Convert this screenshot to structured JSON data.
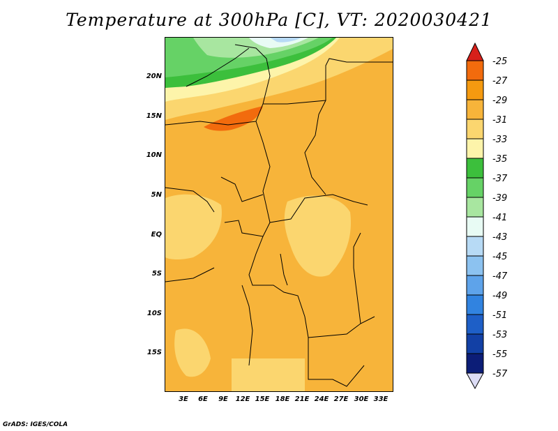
{
  "title": "Temperature at 300hPa [C], VT: 2020030421",
  "credit": "GrADS: IGES/COLA",
  "axes": {
    "lat_labels": [
      "20N",
      "15N",
      "10N",
      "5N",
      "EQ",
      "5S",
      "10S",
      "15S"
    ],
    "lon_labels": [
      "3E",
      "6E",
      "9E",
      "12E",
      "15E",
      "18E",
      "21E",
      "24E",
      "27E",
      "30E",
      "33E"
    ]
  },
  "colorbar": {
    "labels": [
      "-25",
      "-27",
      "-29",
      "-31",
      "-33",
      "-35",
      "-37",
      "-39",
      "-41",
      "-43",
      "-45",
      "-47",
      "-49",
      "-51",
      "-53",
      "-55",
      "-57"
    ],
    "colors": [
      "#d7201a",
      "#f26b0d",
      "#f59a10",
      "#f7b43a",
      "#fbd66f",
      "#fdf4aa",
      "#3cbf3c",
      "#66d266",
      "#a8e6a0",
      "#e8fbf4",
      "#b7daf5",
      "#8cc2f0",
      "#5ea3ea",
      "#3183e0",
      "#1e5fc7",
      "#1240a5",
      "#0c1d77",
      "#dcdcf5"
    ]
  }
}
